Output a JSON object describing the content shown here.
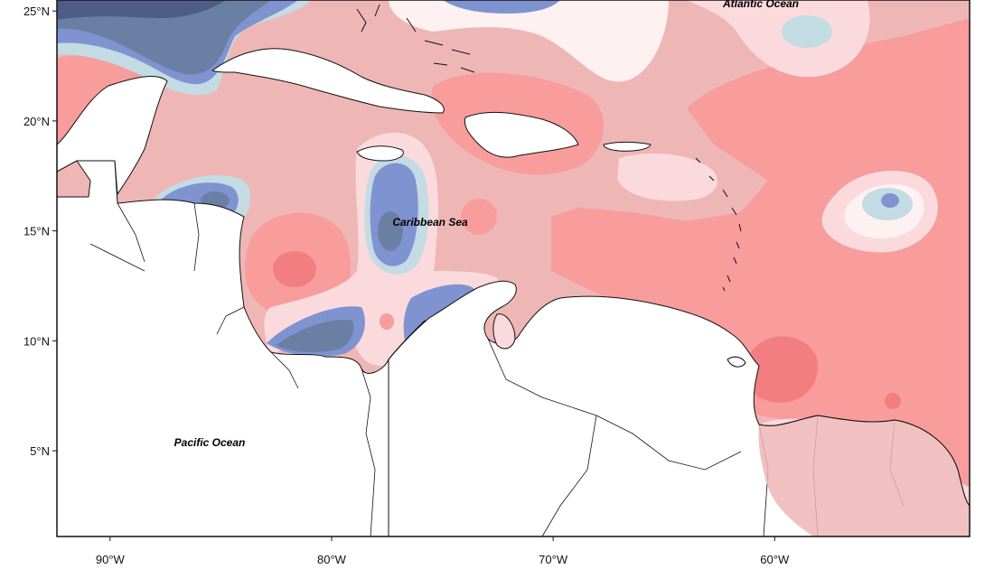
{
  "map": {
    "extent": {
      "lon_min": -92.4,
      "lon_max": -51.2,
      "lat_min": 1.1,
      "lat_max": 25.5
    },
    "x_ticks": [
      {
        "lon": -90,
        "label": "90°W"
      },
      {
        "lon": -80,
        "label": "80°W"
      },
      {
        "lon": -70,
        "label": "70°W"
      },
      {
        "lon": -60,
        "label": "60°W"
      }
    ],
    "y_ticks": [
      {
        "lat": 25,
        "label": "25°N"
      },
      {
        "lat": 20,
        "label": "20°N"
      },
      {
        "lat": 15,
        "label": "15°N"
      },
      {
        "lat": 10,
        "label": "10°N"
      },
      {
        "lat": 5,
        "label": "5°N"
      }
    ],
    "labels": {
      "atlantic": "Atlantic Ocean",
      "caribbean": "Caribbean Sea",
      "pacific": "Pacific Ocean"
    },
    "colors": {
      "red_strong": "#f27e82",
      "red": "#f89c9c",
      "red_mid": "#efb6b6",
      "red_light": "#fadadd",
      "white": "#fdf1f1",
      "blue_light": "#c3dbe2",
      "blue": "#7f93d0",
      "blue_dark": "#6a7fa4",
      "blue_deep": "#4f5d86",
      "land": "#ffffff"
    }
  }
}
